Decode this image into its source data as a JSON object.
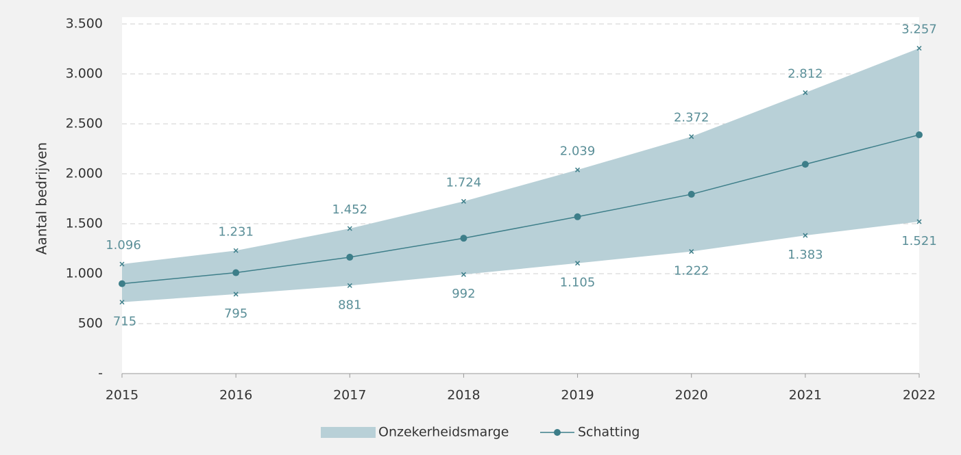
{
  "chart_data": {
    "type": "line",
    "y_label": "Aantal bedrijven",
    "categories": [
      "2015",
      "2016",
      "2017",
      "2018",
      "2019",
      "2020",
      "2021",
      "2022"
    ],
    "series": [
      {
        "name": "Onzekerheidsmarge",
        "color": "#b8d0d7",
        "upper": [
          1096,
          1231,
          1452,
          1724,
          2039,
          2372,
          2812,
          3257
        ],
        "upper_labels": [
          "1.096",
          "1.231",
          "1.452",
          "1.724",
          "2.039",
          "2.372",
          "2.812",
          "3.257"
        ],
        "lower": [
          715,
          795,
          881,
          992,
          1105,
          1222,
          1383,
          1521
        ],
        "lower_labels": [
          "715",
          "795",
          "881",
          "992",
          "1.105",
          "1.222",
          "1.383",
          "1.521"
        ]
      },
      {
        "name": "Schatting",
        "color": "#3d7e89",
        "values": [
          900,
          1010,
          1165,
          1355,
          1570,
          1795,
          2095,
          2390
        ]
      }
    ],
    "ylim": [
      0,
      3500
    ],
    "yticks": [
      {
        "value": 0,
        "label": "-"
      },
      500,
      {
        "value": 1000,
        "label": "1.000"
      },
      {
        "value": 1500,
        "label": "1.500"
      },
      {
        "value": 2000,
        "label": "2.000"
      },
      {
        "value": 2500,
        "label": "2.500"
      },
      {
        "value": 3000,
        "label": "3.000"
      },
      {
        "value": 3500,
        "label": "3.500"
      }
    ],
    "grid": true,
    "legend": "bottom"
  }
}
